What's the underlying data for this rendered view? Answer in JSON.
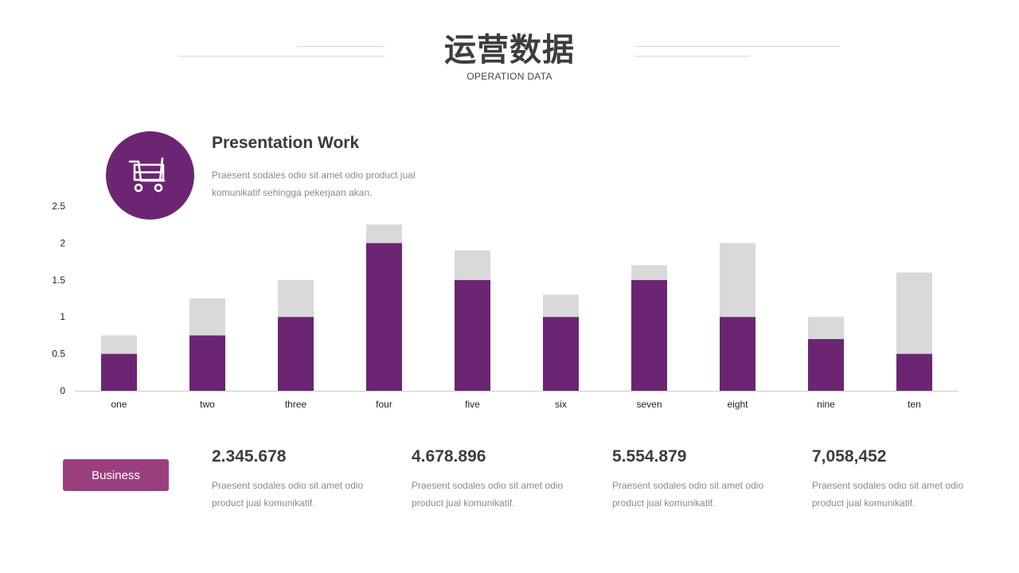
{
  "header": {
    "title": "运营数据",
    "subtitle": "OPERATION DATA"
  },
  "intro": {
    "icon": "shopping-cart-icon",
    "heading": "Presentation Work",
    "text": "Praesent sodales odio sit amet odio product jual komunikatif sehingga pekerjaan akan."
  },
  "colors": {
    "primary": "#6B2572",
    "secondary": "#D9D9D9",
    "button": "#9B3E7E"
  },
  "chart_data": {
    "type": "bar",
    "stacked": true,
    "categories": [
      "one",
      "two",
      "three",
      "four",
      "five",
      "six",
      "seven",
      "eight",
      "nine",
      "ten"
    ],
    "series": [
      {
        "values": [
          0.5,
          0.75,
          1,
          2,
          1.5,
          1,
          1.5,
          1,
          0.7,
          0.5
        ],
        "color": "#6B2572"
      },
      {
        "values": [
          0.25,
          0.5,
          0.5,
          0.25,
          0.4,
          0.3,
          0.2,
          1,
          0.3,
          1.1
        ],
        "color": "#D9D9D9"
      }
    ],
    "yticks": [
      "0",
      "0.5",
      "1",
      "1.5",
      "2",
      "2.5"
    ],
    "ylim": [
      0,
      2.5
    ],
    "grid": false
  },
  "button": {
    "label": "Business"
  },
  "stats": [
    {
      "value": "2.345.678",
      "desc": "Praesent sodales odio sit amet odio product jual komunikatif."
    },
    {
      "value": "4.678.896",
      "desc": "Praesent sodales odio sit amet odio product jual komunikatif."
    },
    {
      "value": "5.554.879",
      "desc": "Praesent sodales odio sit amet odio product jual komunikatif."
    },
    {
      "value": "7,058,452",
      "desc": "Praesent sodales odio sit amet odio product jual komunikatif."
    }
  ]
}
